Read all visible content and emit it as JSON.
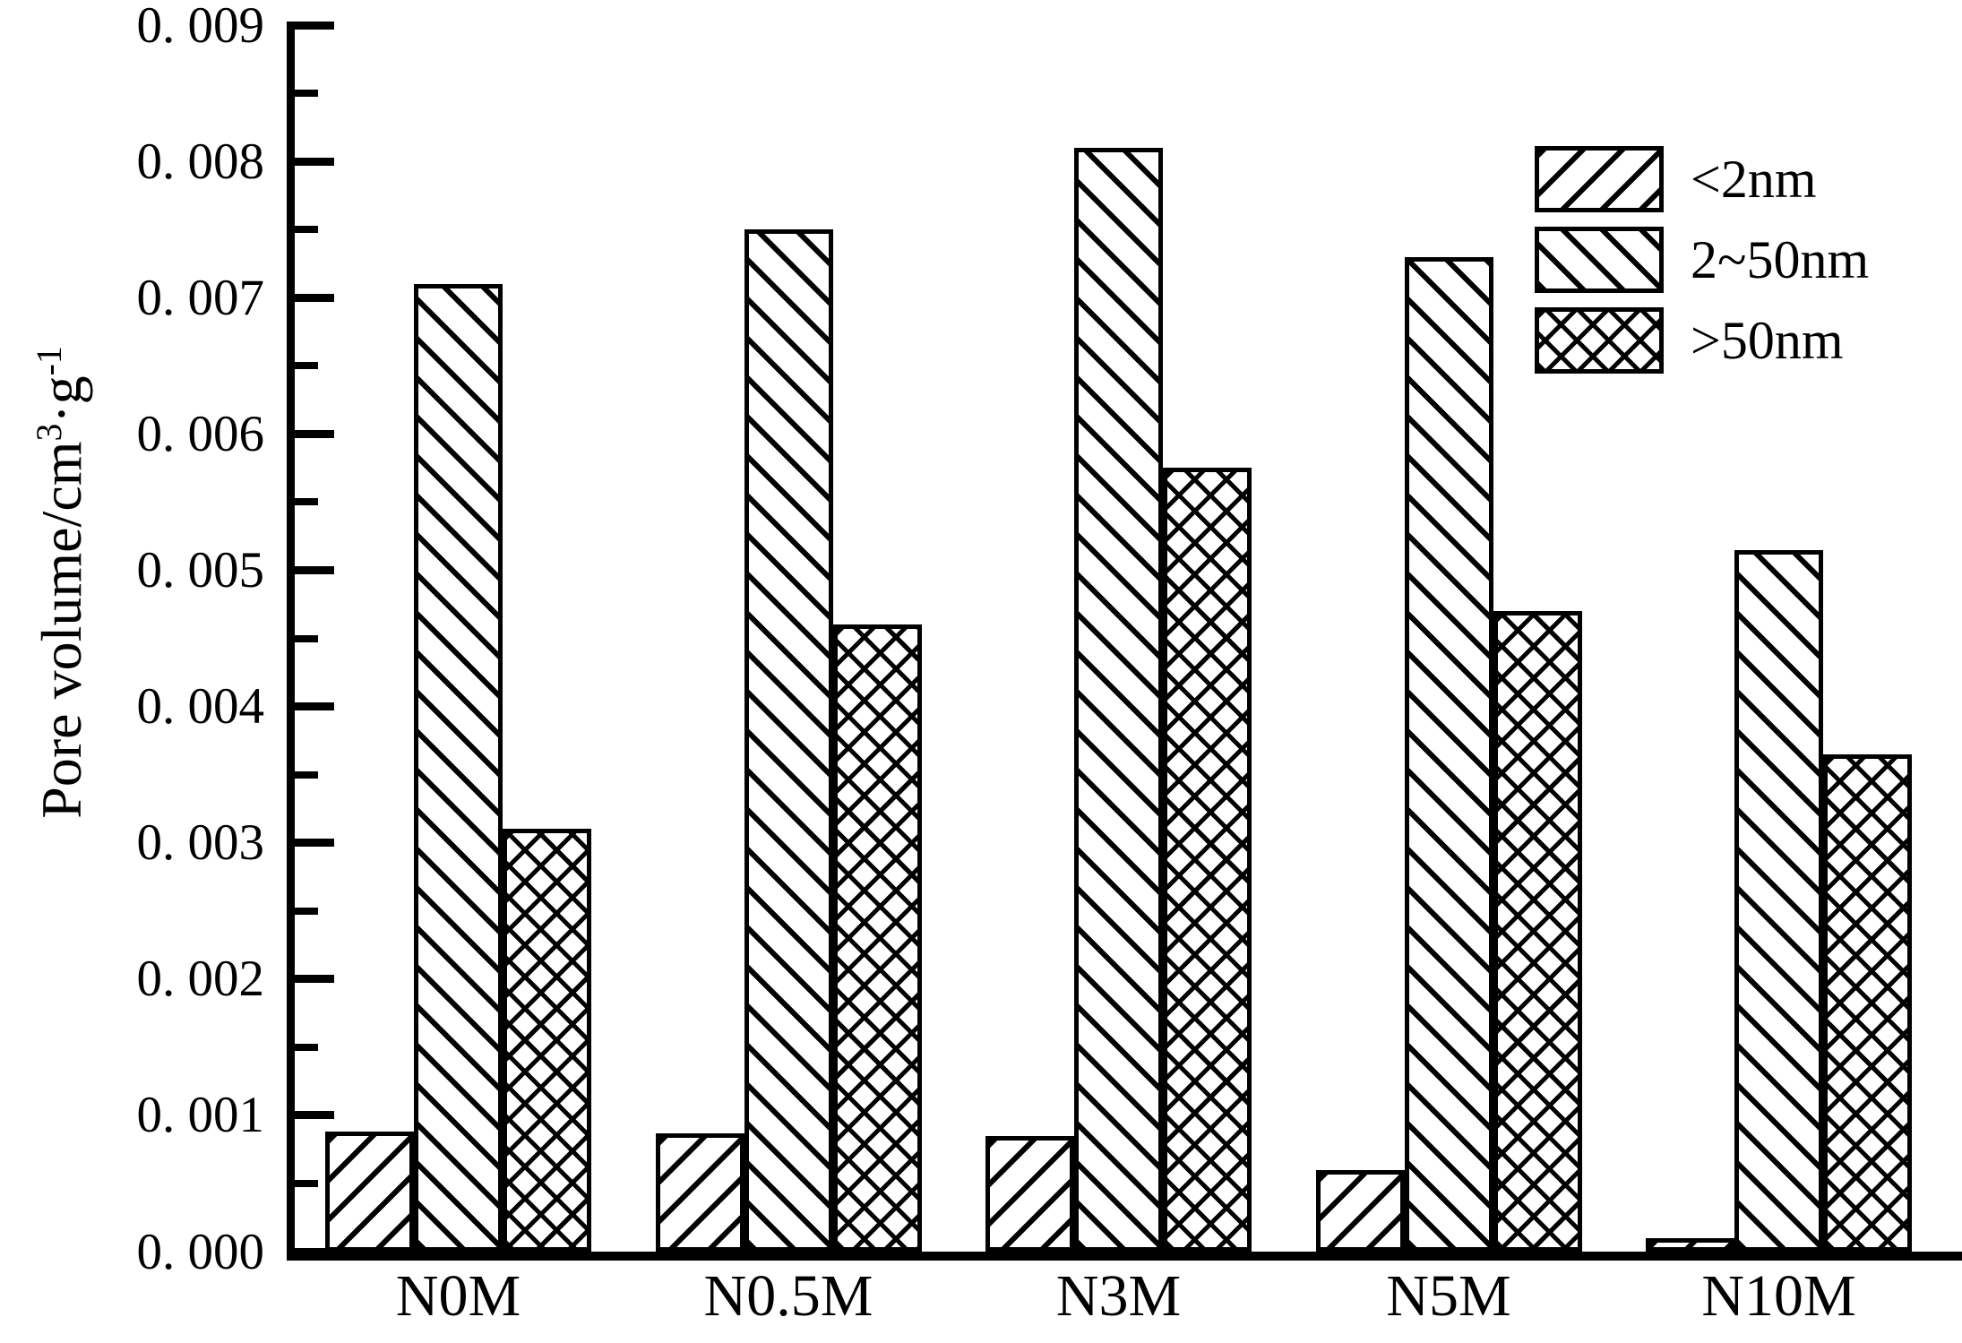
{
  "labels": {
    "y_title_prefix": "Pore volume/cm",
    "y_title_sup1": "3",
    "y_title_mid": "·g",
    "y_title_sup2": "-1"
  },
  "chart_data": {
    "type": "bar",
    "title": "",
    "xlabel": "",
    "ylabel": "Pore volume/cm3·g-1",
    "categories": [
      "N0M",
      "N0.5M",
      "N3M",
      "N5M",
      "N10M"
    ],
    "series": [
      {
        "name": "<2nm",
        "hatch": "diagonal-forward",
        "values": [
          0.00088,
          0.00087,
          0.00085,
          0.0006,
          0.0001
        ]
      },
      {
        "name": "2~50nm",
        "hatch": "diagonal-backward",
        "values": [
          0.0071,
          0.0075,
          0.0081,
          0.0073,
          0.00515
        ]
      },
      {
        "name": ">50nm",
        "hatch": "crosshatch",
        "values": [
          0.0031,
          0.0046,
          0.00575,
          0.0047,
          0.00365
        ]
      }
    ],
    "ylim": [
      0.0,
      0.009
    ],
    "ytick_step": 0.001,
    "ytick_labels": [
      "0. 000",
      "0. 001",
      "0. 002",
      "0. 003",
      "0. 004",
      "0. 005",
      "0. 006",
      "0. 007",
      "0. 008",
      "0. 009"
    ],
    "minor_ticks_every": 0.0005,
    "grid": false,
    "legend_position": "top-right",
    "bar_color": "#000000",
    "background_color": "#ffffff"
  }
}
